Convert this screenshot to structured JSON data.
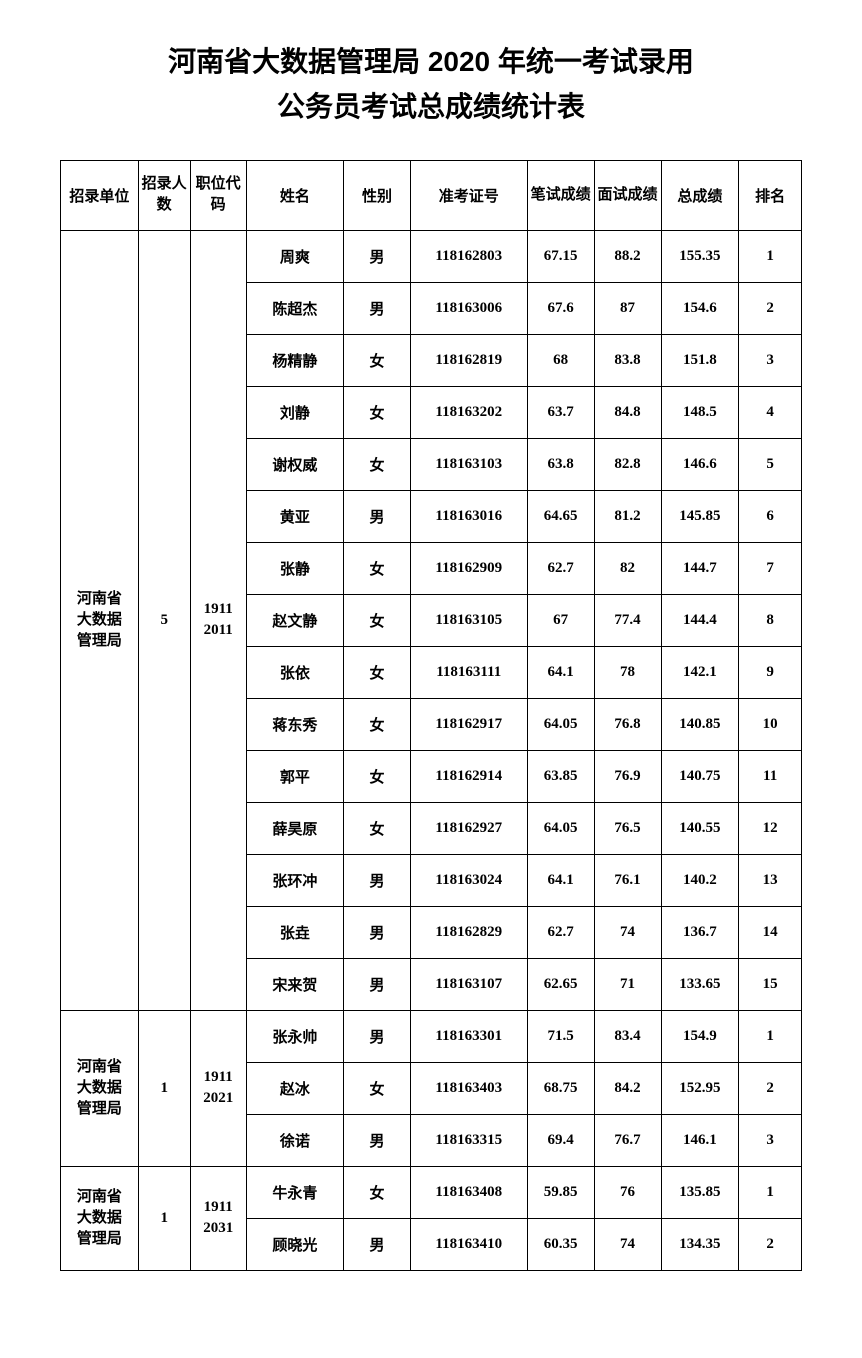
{
  "title_line1": "河南省大数据管理局 2020 年统一考试录用",
  "title_line2": "公务员考试总成绩统计表",
  "headers": {
    "unit": "招录单位",
    "count": "招录人数",
    "code": "职位代码",
    "name": "姓名",
    "gender": "性别",
    "exam_no": "准考证号",
    "written": "笔试成绩",
    "interview": "面试成绩",
    "total": "总成绩",
    "rank": "排名"
  },
  "groups": [
    {
      "unit": "河南省大数据管理局",
      "count": "5",
      "code": "19112011",
      "rows": [
        {
          "name": "周爽",
          "gender": "男",
          "exam_no": "118162803",
          "written": "67.15",
          "interview": "88.2",
          "total": "155.35",
          "rank": "1"
        },
        {
          "name": "陈超杰",
          "gender": "男",
          "exam_no": "118163006",
          "written": "67.6",
          "interview": "87",
          "total": "154.6",
          "rank": "2"
        },
        {
          "name": "杨精静",
          "gender": "女",
          "exam_no": "118162819",
          "written": "68",
          "interview": "83.8",
          "total": "151.8",
          "rank": "3"
        },
        {
          "name": "刘静",
          "gender": "女",
          "exam_no": "118163202",
          "written": "63.7",
          "interview": "84.8",
          "total": "148.5",
          "rank": "4"
        },
        {
          "name": "谢权威",
          "gender": "女",
          "exam_no": "118163103",
          "written": "63.8",
          "interview": "82.8",
          "total": "146.6",
          "rank": "5"
        },
        {
          "name": "黄亚",
          "gender": "男",
          "exam_no": "118163016",
          "written": "64.65",
          "interview": "81.2",
          "total": "145.85",
          "rank": "6"
        },
        {
          "name": "张静",
          "gender": "女",
          "exam_no": "118162909",
          "written": "62.7",
          "interview": "82",
          "total": "144.7",
          "rank": "7"
        },
        {
          "name": "赵文静",
          "gender": "女",
          "exam_no": "118163105",
          "written": "67",
          "interview": "77.4",
          "total": "144.4",
          "rank": "8"
        },
        {
          "name": "张依",
          "gender": "女",
          "exam_no": "118163111",
          "written": "64.1",
          "interview": "78",
          "total": "142.1",
          "rank": "9"
        },
        {
          "name": "蒋东秀",
          "gender": "女",
          "exam_no": "118162917",
          "written": "64.05",
          "interview": "76.8",
          "total": "140.85",
          "rank": "10"
        },
        {
          "name": "郭平",
          "gender": "女",
          "exam_no": "118162914",
          "written": "63.85",
          "interview": "76.9",
          "total": "140.75",
          "rank": "11"
        },
        {
          "name": "薛昊原",
          "gender": "女",
          "exam_no": "118162927",
          "written": "64.05",
          "interview": "76.5",
          "total": "140.55",
          "rank": "12"
        },
        {
          "name": "张环冲",
          "gender": "男",
          "exam_no": "118163024",
          "written": "64.1",
          "interview": "76.1",
          "total": "140.2",
          "rank": "13"
        },
        {
          "name": "张垚",
          "gender": "男",
          "exam_no": "118162829",
          "written": "62.7",
          "interview": "74",
          "total": "136.7",
          "rank": "14"
        },
        {
          "name": "宋来贺",
          "gender": "男",
          "exam_no": "118163107",
          "written": "62.65",
          "interview": "71",
          "total": "133.65",
          "rank": "15"
        }
      ]
    },
    {
      "unit": "河南省大数据管理局",
      "count": "1",
      "code": "19112021",
      "rows": [
        {
          "name": "张永帅",
          "gender": "男",
          "exam_no": "118163301",
          "written": "71.5",
          "interview": "83.4",
          "total": "154.9",
          "rank": "1"
        },
        {
          "name": "赵冰",
          "gender": "女",
          "exam_no": "118163403",
          "written": "68.75",
          "interview": "84.2",
          "total": "152.95",
          "rank": "2"
        },
        {
          "name": "徐诺",
          "gender": "男",
          "exam_no": "118163315",
          "written": "69.4",
          "interview": "76.7",
          "total": "146.1",
          "rank": "3"
        }
      ]
    },
    {
      "unit": "河南省大数据管理局",
      "count": "1",
      "code": "19112031",
      "rows": [
        {
          "name": "牛永青",
          "gender": "女",
          "exam_no": "118163408",
          "written": "59.85",
          "interview": "76",
          "total": "135.85",
          "rank": "1"
        },
        {
          "name": "顾晓光",
          "gender": "男",
          "exam_no": "118163410",
          "written": "60.35",
          "interview": "74",
          "total": "134.35",
          "rank": "2"
        }
      ]
    }
  ]
}
